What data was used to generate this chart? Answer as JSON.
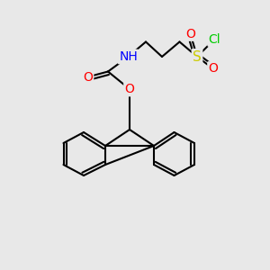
{
  "bg_color": "#e8e8e8",
  "bond_color": "#000000",
  "bond_width": 1.5,
  "atom_colors": {
    "O": "#ff0000",
    "N": "#0000ff",
    "S": "#cccc00",
    "Cl": "#00cc00",
    "C": "#000000"
  },
  "font_size": 9,
  "fig_size": [
    3.0,
    3.0
  ],
  "dpi": 100
}
